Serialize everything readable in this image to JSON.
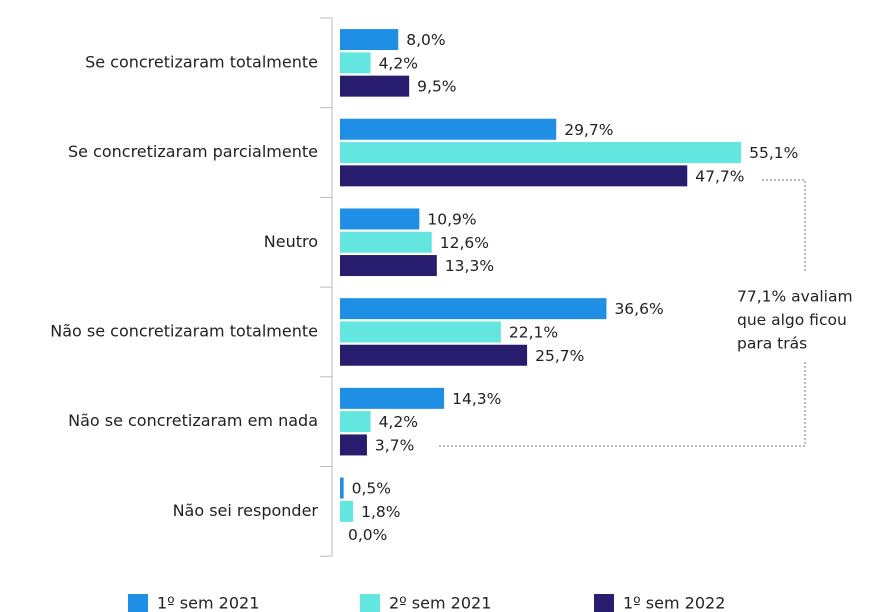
{
  "chart_data": {
    "type": "bar",
    "orientation": "horizontal",
    "categories": [
      "Se concretizaram totalmente",
      "Se concretizaram parcialmente",
      "Neutro",
      "Não se concretizaram totalmente",
      "Não se concretizaram em nada",
      "Não sei responder"
    ],
    "series": [
      {
        "name": "1º sem 2021",
        "color": "#1f8fe5",
        "values": [
          8.0,
          29.7,
          10.9,
          36.6,
          14.3,
          0.5
        ],
        "value_labels": [
          "8,0%",
          "29,7%",
          "10,9%",
          "36,6%",
          "14,3%",
          "0,5%"
        ]
      },
      {
        "name": "2º sem 2021",
        "color": "#64e6e0",
        "values": [
          4.2,
          55.1,
          12.6,
          22.1,
          4.2,
          1.8
        ],
        "value_labels": [
          "4,2%",
          "55,1%",
          "12,6%",
          "22,1%",
          "4,2%",
          "1,8%"
        ]
      },
      {
        "name": "1º sem 2022",
        "color": "#271c6e",
        "values": [
          9.5,
          47.7,
          13.3,
          25.7,
          3.7,
          0.0
        ],
        "value_labels": [
          "9,5%",
          "47,7%",
          "13,3%",
          "25,7%",
          "3,7%",
          "0,0%"
        ]
      }
    ],
    "annotation": [
      "77,1% avaliam",
      "que algo ficou",
      "para trás"
    ],
    "legend": "bottom"
  }
}
